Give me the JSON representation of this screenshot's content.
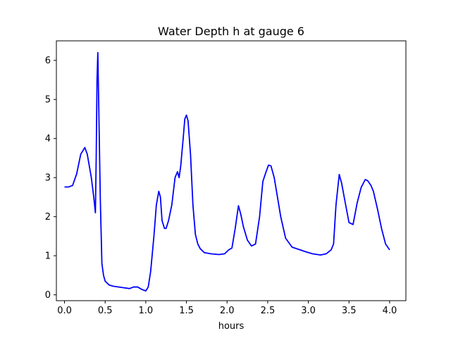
{
  "chart_data": {
    "type": "line",
    "title": "Water Depth h at gauge 6",
    "xlabel": "hours",
    "ylabel": "",
    "xlim": [
      -0.1,
      4.2
    ],
    "ylim": [
      -0.15,
      6.5
    ],
    "xticks": [
      0.0,
      0.5,
      1.0,
      1.5,
      2.0,
      2.5,
      3.0,
      3.5,
      4.0
    ],
    "xtick_labels": [
      "0.0",
      "0.5",
      "1.0",
      "1.5",
      "2.0",
      "2.5",
      "3.0",
      "3.5",
      "4.0"
    ],
    "yticks": [
      0,
      1,
      2,
      3,
      4,
      5,
      6
    ],
    "ytick_labels": [
      "0",
      "1",
      "2",
      "3",
      "4",
      "5",
      "6"
    ],
    "grid": false,
    "legend": "none",
    "colors": {
      "series": "#0000ff",
      "axes": "#000000",
      "background": "#ffffff"
    },
    "series": [
      {
        "x": [
          0.0,
          0.05,
          0.1,
          0.15,
          0.2,
          0.25,
          0.28,
          0.33,
          0.36,
          0.38,
          0.39,
          0.4,
          0.41,
          0.42,
          0.44,
          0.46,
          0.48,
          0.5,
          0.55,
          0.6,
          0.7,
          0.8,
          0.85,
          0.9,
          0.95,
          1.0,
          1.03,
          1.06,
          1.1,
          1.13,
          1.16,
          1.18,
          1.2,
          1.23,
          1.25,
          1.28,
          1.32,
          1.36,
          1.39,
          1.41,
          1.43,
          1.46,
          1.48,
          1.5,
          1.52,
          1.55,
          1.58,
          1.61,
          1.64,
          1.67,
          1.72,
          1.8,
          1.9,
          1.97,
          2.02,
          2.06,
          2.1,
          2.14,
          2.17,
          2.2,
          2.25,
          2.3,
          2.35,
          2.4,
          2.44,
          2.48,
          2.51,
          2.54,
          2.58,
          2.62,
          2.66,
          2.72,
          2.8,
          2.9,
          2.97,
          3.05,
          3.15,
          3.22,
          3.28,
          3.31,
          3.34,
          3.38,
          3.41,
          3.45,
          3.5,
          3.55,
          3.6,
          3.65,
          3.7,
          3.73,
          3.77,
          3.8,
          3.85,
          3.9,
          3.95,
          4.0
        ],
        "y": [
          2.76,
          2.76,
          2.8,
          3.1,
          3.6,
          3.77,
          3.6,
          3.0,
          2.5,
          2.1,
          3.5,
          5.5,
          6.2,
          5.0,
          2.5,
          0.8,
          0.5,
          0.35,
          0.25,
          0.22,
          0.19,
          0.16,
          0.2,
          0.2,
          0.14,
          0.1,
          0.2,
          0.6,
          1.5,
          2.3,
          2.65,
          2.5,
          1.9,
          1.7,
          1.7,
          1.9,
          2.3,
          3.0,
          3.15,
          3.0,
          3.3,
          4.0,
          4.5,
          4.6,
          4.45,
          3.6,
          2.3,
          1.55,
          1.3,
          1.18,
          1.08,
          1.05,
          1.03,
          1.05,
          1.15,
          1.2,
          1.7,
          2.28,
          2.05,
          1.75,
          1.4,
          1.25,
          1.3,
          2.0,
          2.9,
          3.15,
          3.32,
          3.3,
          3.0,
          2.5,
          2.0,
          1.45,
          1.22,
          1.15,
          1.1,
          1.05,
          1.02,
          1.05,
          1.15,
          1.3,
          2.3,
          3.08,
          2.85,
          2.4,
          1.85,
          1.8,
          2.35,
          2.75,
          2.95,
          2.92,
          2.8,
          2.65,
          2.2,
          1.7,
          1.3,
          1.15
        ]
      }
    ]
  }
}
